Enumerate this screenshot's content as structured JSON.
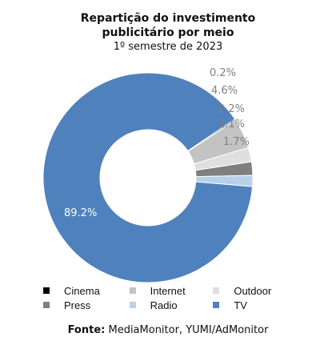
{
  "title_line1": "Repartição do investimento",
  "title_line2": "publicitário por meio",
  "title_line3": "1º semestre de 2023",
  "source_label": "Fonte:",
  "source_text": " MediaMonitor, YUMI/AdMonitor",
  "chart_data": {
    "type": "pie",
    "title": "Repartição do investimento publicitário por meio",
    "subtitle": "1º semestre de 2023",
    "categories": [
      "Cinema",
      "Internet",
      "Outdoor",
      "Press",
      "Radio",
      "TV"
    ],
    "values": [
      0.2,
      4.6,
      2.2,
      2.1,
      1.7,
      89.2
    ],
    "labels": [
      "0.2%",
      "4.6%",
      "2.2%",
      "2.1%",
      "1.7%",
      "89.2%"
    ],
    "colors": [
      "#000000",
      "#c3c3c3",
      "#dfdfdf",
      "#7f7f7f",
      "#b8d0ea",
      "#4f81bd"
    ],
    "donut": true,
    "legend_position": "bottom"
  }
}
